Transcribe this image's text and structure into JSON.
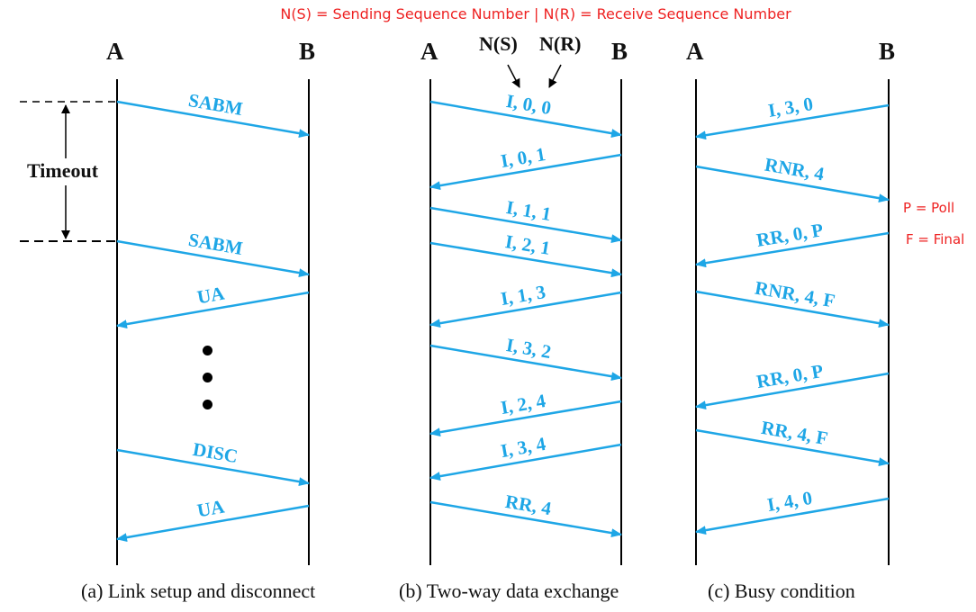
{
  "legend_top": "N(S) = Sending Sequence Number | N(R) = Receive Sequence Number",
  "side_notes": {
    "poll": "P = Poll",
    "final": "F = Final"
  },
  "colors": {
    "arrow": "#1ea6e6",
    "note": "#ee2222",
    "line": "#000000"
  },
  "panels": {
    "a": {
      "caption": "(a) Link setup and disconnect",
      "station_left": "A",
      "station_right": "B",
      "timeout_label": "Timeout",
      "messages": [
        {
          "label": "SABM",
          "direction": "A->B"
        },
        {
          "label": "SABM",
          "direction": "A->B"
        },
        {
          "label": "UA",
          "direction": "B->A"
        },
        {
          "label": "DISC",
          "direction": "A->B"
        },
        {
          "label": "UA",
          "direction": "B->A"
        }
      ]
    },
    "b": {
      "caption": "(b) Two-way data exchange",
      "station_left": "A",
      "station_right": "B",
      "ns_label": "N(S)",
      "nr_label": "N(R)",
      "messages": [
        {
          "label": "I, 0, 0",
          "direction": "A->B"
        },
        {
          "label": "I, 0, 1",
          "direction": "B->A"
        },
        {
          "label": "I, 1, 1",
          "direction": "A->B"
        },
        {
          "label": "I, 2, 1",
          "direction": "A->B"
        },
        {
          "label": "I, 1, 3",
          "direction": "B->A"
        },
        {
          "label": "I, 3, 2",
          "direction": "A->B"
        },
        {
          "label": "I, 2, 4",
          "direction": "B->A"
        },
        {
          "label": "I, 3, 4",
          "direction": "B->A"
        },
        {
          "label": "RR, 4",
          "direction": "A->B"
        }
      ]
    },
    "c": {
      "caption": "(c) Busy condition",
      "station_left": "A",
      "station_right": "B",
      "messages": [
        {
          "label": "I, 3, 0",
          "direction": "B->A"
        },
        {
          "label": "RNR, 4",
          "direction": "A->B"
        },
        {
          "label": "RR, 0, P",
          "direction": "B->A"
        },
        {
          "label": "RNR, 4, F",
          "direction": "A->B"
        },
        {
          "label": "RR, 0, P",
          "direction": "B->A"
        },
        {
          "label": "RR, 4, F",
          "direction": "A->B"
        },
        {
          "label": "I, 4, 0",
          "direction": "B->A"
        }
      ]
    }
  }
}
